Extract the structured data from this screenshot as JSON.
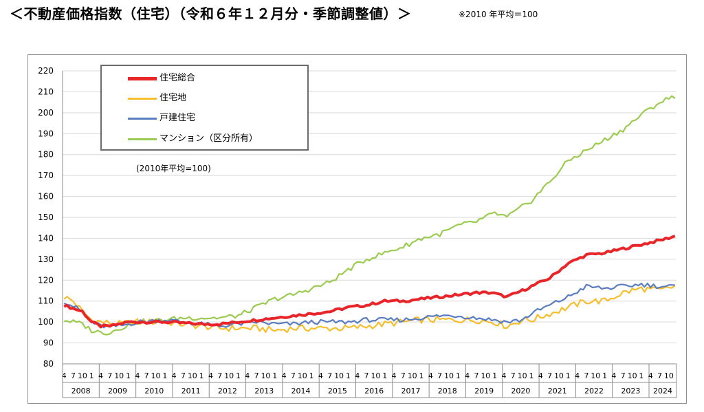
{
  "header": {
    "title": "＜不動産価格指数（住宅）（令和６年１２月分・季節調整値）＞",
    "note": "※2010 年平均＝100"
  },
  "chart_data": {
    "type": "line",
    "subtitle": "(2010年平均=100)",
    "ylim": [
      80,
      220
    ],
    "yticks": [
      80,
      90,
      100,
      110,
      120,
      130,
      140,
      150,
      160,
      170,
      180,
      190,
      200,
      210,
      220
    ],
    "x_start": "2008-04",
    "x_end": "2024-12",
    "month_tick_labels": [
      "4",
      "7",
      "10",
      "1"
    ],
    "years": [
      "2008",
      "2009",
      "2010",
      "2011",
      "2012",
      "2013",
      "2014",
      "2015",
      "2016",
      "2017",
      "2018",
      "2019",
      "2020",
      "2021",
      "2022",
      "2023",
      "2024"
    ],
    "grid": true,
    "legend_position": "top-left",
    "series": [
      {
        "name": "住宅総合",
        "color": "#e8262a",
        "anchors": [
          [
            "2008-04",
            108
          ],
          [
            "2008-10",
            105
          ],
          [
            "2009-01",
            100
          ],
          [
            "2009-04",
            98
          ],
          [
            "2009-07",
            98
          ],
          [
            "2010-01",
            100
          ],
          [
            "2011-01",
            100
          ],
          [
            "2012-01",
            99
          ],
          [
            "2012-07",
            99
          ],
          [
            "2013-01",
            100
          ],
          [
            "2013-07",
            101
          ],
          [
            "2014-01",
            102
          ],
          [
            "2014-07",
            103
          ],
          [
            "2015-01",
            104
          ],
          [
            "2015-07",
            105
          ],
          [
            "2016-01",
            107
          ],
          [
            "2016-07",
            108
          ],
          [
            "2017-01",
            110
          ],
          [
            "2017-07",
            110
          ],
          [
            "2018-01",
            111
          ],
          [
            "2018-07",
            112
          ],
          [
            "2019-01",
            113
          ],
          [
            "2019-07",
            114
          ],
          [
            "2019-12",
            114
          ],
          [
            "2020-05",
            112
          ],
          [
            "2020-10",
            115
          ],
          [
            "2021-01",
            117
          ],
          [
            "2021-07",
            121
          ],
          [
            "2022-01",
            128
          ],
          [
            "2022-07",
            132
          ],
          [
            "2023-01",
            133
          ],
          [
            "2023-07",
            135
          ],
          [
            "2024-01",
            137
          ],
          [
            "2024-07",
            139
          ],
          [
            "2024-12",
            141
          ]
        ]
      },
      {
        "name": "住宅地",
        "color": "#f7be2c",
        "anchors": [
          [
            "2008-04",
            112
          ],
          [
            "2008-07",
            110
          ],
          [
            "2008-10",
            105
          ],
          [
            "2009-01",
            101
          ],
          [
            "2009-04",
            100
          ],
          [
            "2009-10",
            99
          ],
          [
            "2010-04",
            100
          ],
          [
            "2011-01",
            100
          ],
          [
            "2011-07",
            99
          ],
          [
            "2012-01",
            98
          ],
          [
            "2012-07",
            97
          ],
          [
            "2013-01",
            97
          ],
          [
            "2013-07",
            97
          ],
          [
            "2014-01",
            96
          ],
          [
            "2014-07",
            97
          ],
          [
            "2015-01",
            97
          ],
          [
            "2015-07",
            97
          ],
          [
            "2016-01",
            97
          ],
          [
            "2016-07",
            98
          ],
          [
            "2017-01",
            99
          ],
          [
            "2017-07",
            100
          ],
          [
            "2018-01",
            101
          ],
          [
            "2018-07",
            101
          ],
          [
            "2019-01",
            101
          ],
          [
            "2019-07",
            101
          ],
          [
            "2020-01",
            100
          ],
          [
            "2020-05",
            98
          ],
          [
            "2020-10",
            101
          ],
          [
            "2021-01",
            101
          ],
          [
            "2021-07",
            104
          ],
          [
            "2022-01",
            107
          ],
          [
            "2022-07",
            110
          ],
          [
            "2023-01",
            110
          ],
          [
            "2023-07",
            114
          ],
          [
            "2024-01",
            116
          ],
          [
            "2024-07",
            115
          ],
          [
            "2024-12",
            117
          ]
        ]
      },
      {
        "name": "戸建住宅",
        "color": "#5a7cc0",
        "anchors": [
          [
            "2008-04",
            110
          ],
          [
            "2008-10",
            105
          ],
          [
            "2009-01",
            100
          ],
          [
            "2009-04",
            98
          ],
          [
            "2009-10",
            98
          ],
          [
            "2010-04",
            100
          ],
          [
            "2011-01",
            101
          ],
          [
            "2011-07",
            100
          ],
          [
            "2012-01",
            99
          ],
          [
            "2012-07",
            98
          ],
          [
            "2013-01",
            99
          ],
          [
            "2013-07",
            100
          ],
          [
            "2014-01",
            99
          ],
          [
            "2014-07",
            99
          ],
          [
            "2015-01",
            100
          ],
          [
            "2015-07",
            100
          ],
          [
            "2016-01",
            100
          ],
          [
            "2016-07",
            101
          ],
          [
            "2017-01",
            101
          ],
          [
            "2017-07",
            101
          ],
          [
            "2018-01",
            102
          ],
          [
            "2018-07",
            103
          ],
          [
            "2019-01",
            103
          ],
          [
            "2019-07",
            102
          ],
          [
            "2020-01",
            101
          ],
          [
            "2020-05",
            100
          ],
          [
            "2020-10",
            101
          ],
          [
            "2021-01",
            104
          ],
          [
            "2021-07",
            108
          ],
          [
            "2022-01",
            112
          ],
          [
            "2022-07",
            117
          ],
          [
            "2023-01",
            116
          ],
          [
            "2023-07",
            117
          ],
          [
            "2024-01",
            118
          ],
          [
            "2024-07",
            117
          ],
          [
            "2024-12",
            117
          ]
        ]
      },
      {
        "name": "マンション（区分所有）",
        "color": "#9bcb4f",
        "anchors": [
          [
            "2008-04",
            101
          ],
          [
            "2008-07",
            100
          ],
          [
            "2008-10",
            99
          ],
          [
            "2009-01",
            96
          ],
          [
            "2009-04",
            95
          ],
          [
            "2009-07",
            95
          ],
          [
            "2009-10",
            97
          ],
          [
            "2010-04",
            100
          ],
          [
            "2011-01",
            101
          ],
          [
            "2011-07",
            102
          ],
          [
            "2012-01",
            102
          ],
          [
            "2012-07",
            102
          ],
          [
            "2013-01",
            103
          ],
          [
            "2013-07",
            107
          ],
          [
            "2014-01",
            111
          ],
          [
            "2014-07",
            113
          ],
          [
            "2015-01",
            116
          ],
          [
            "2015-07",
            119
          ],
          [
            "2016-01",
            125
          ],
          [
            "2016-07",
            130
          ],
          [
            "2017-01",
            133
          ],
          [
            "2017-07",
            136
          ],
          [
            "2018-01",
            140
          ],
          [
            "2018-07",
            142
          ],
          [
            "2019-01",
            146
          ],
          [
            "2019-07",
            148
          ],
          [
            "2020-01",
            152
          ],
          [
            "2020-05",
            150
          ],
          [
            "2020-10",
            155
          ],
          [
            "2021-01",
            158
          ],
          [
            "2021-07",
            167
          ],
          [
            "2022-01",
            177
          ],
          [
            "2022-07",
            182
          ],
          [
            "2023-01",
            187
          ],
          [
            "2023-07",
            192
          ],
          [
            "2024-01",
            199
          ],
          [
            "2024-07",
            205
          ],
          [
            "2024-12",
            208
          ]
        ]
      }
    ]
  }
}
